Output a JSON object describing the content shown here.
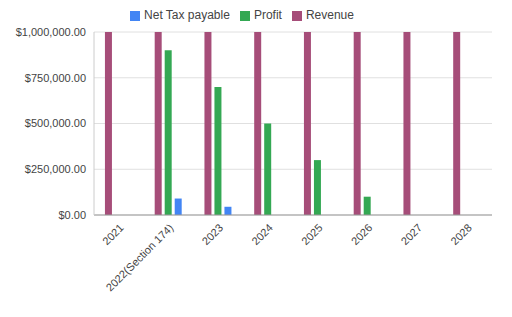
{
  "chart_data": {
    "type": "bar",
    "categories": [
      "2021",
      "2022(Section 174)",
      "2023",
      "2024",
      "2025",
      "2026",
      "2027",
      "2028"
    ],
    "series": [
      {
        "name": "Revenue",
        "color": "#a64d79",
        "values": [
          1000000,
          1000000,
          1000000,
          1000000,
          1000000,
          1000000,
          1000000,
          1000000
        ]
      },
      {
        "name": "Profit",
        "color": "#34a853",
        "values": [
          0,
          900000,
          700000,
          500000,
          300000,
          100000,
          0,
          0
        ]
      },
      {
        "name": "Net Tax payable",
        "color": "#4285f4",
        "values": [
          0,
          90000,
          45000,
          0,
          0,
          0,
          0,
          0
        ]
      }
    ],
    "ylim": [
      0,
      1000000
    ],
    "yticks": [
      {
        "value": 0,
        "label": "$0.00"
      },
      {
        "value": 250000,
        "label": "$250,000.00"
      },
      {
        "value": 500000,
        "label": "$500,000.00"
      },
      {
        "value": 750000,
        "label": "$750,000.00"
      },
      {
        "value": 1000000,
        "label": "$1,000,000.00"
      }
    ],
    "grid": true,
    "legend": "top"
  }
}
